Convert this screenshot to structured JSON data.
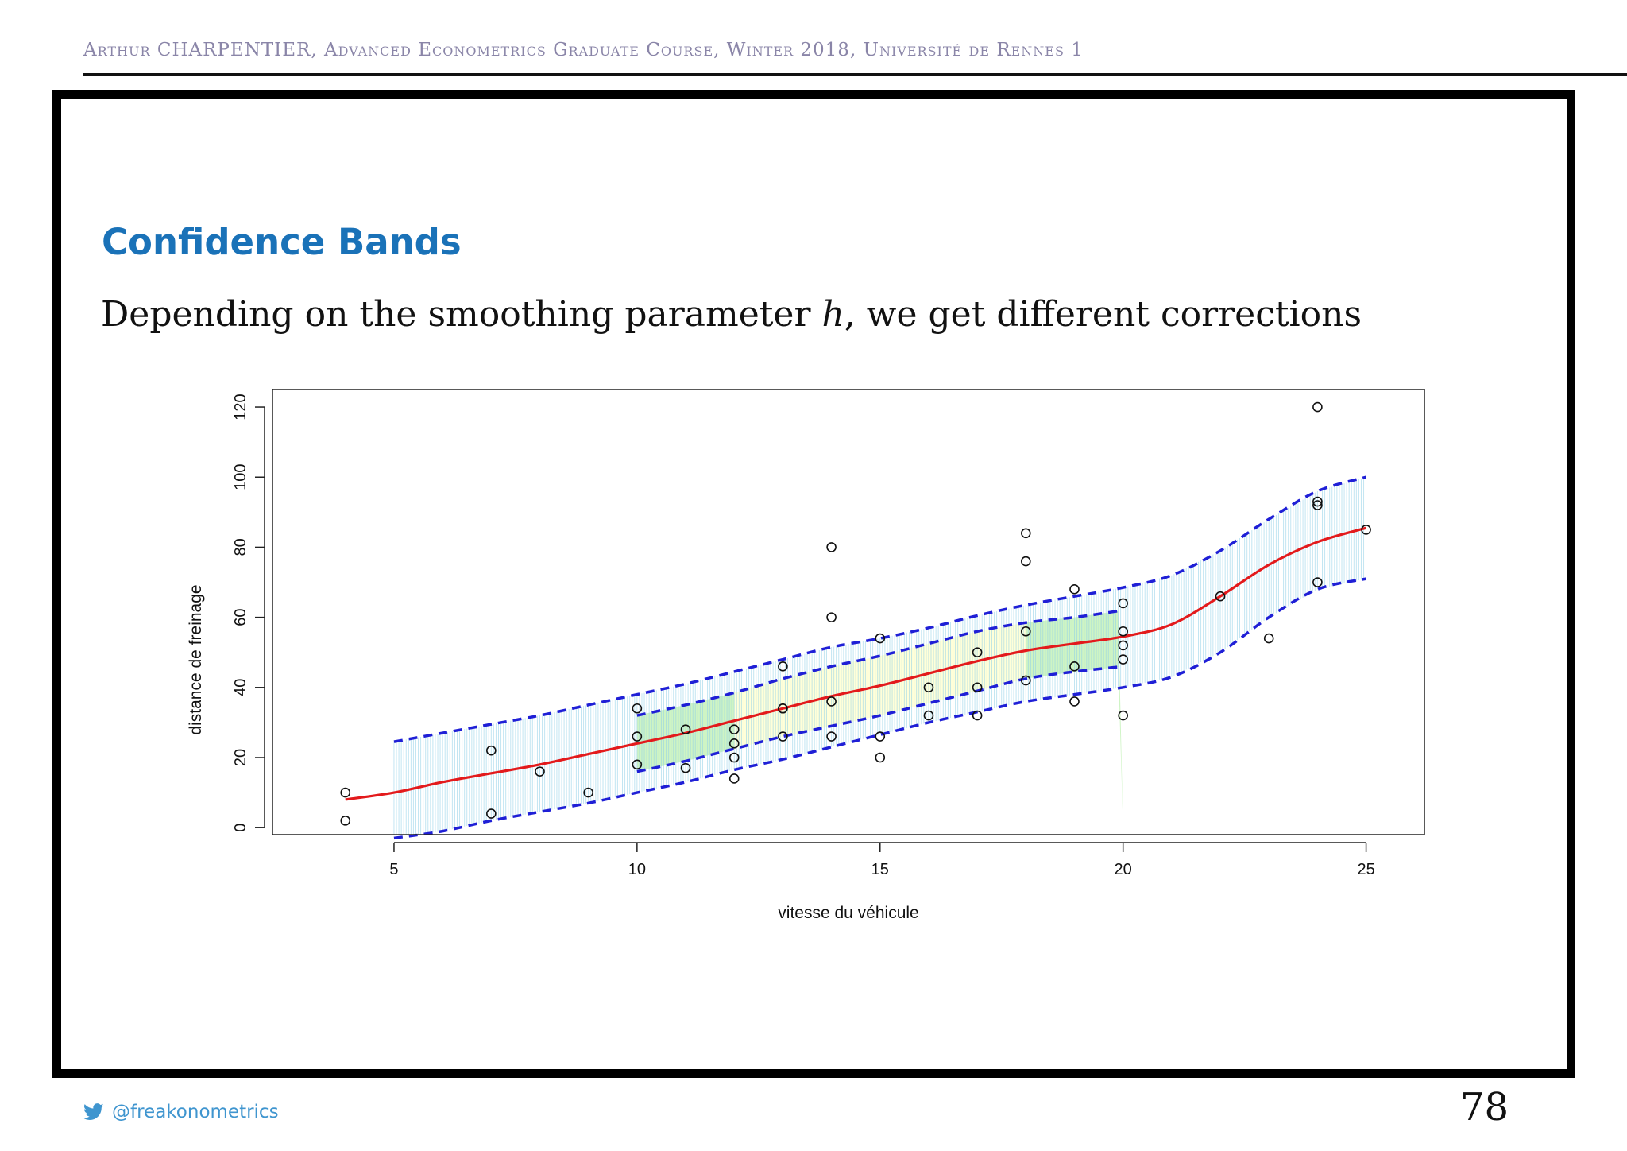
{
  "header": {
    "text": "Arthur CHARPENTIER, Advanced Econometrics Graduate Course, Winter 2018, Université de Rennes 1"
  },
  "slide": {
    "title": "Confidence Bands",
    "lead_before": "Depending on the smoothing parameter ",
    "lead_var": "h",
    "lead_after": ", we get different corrections"
  },
  "footer": {
    "handle": "@freakonometrics",
    "icon": "twitter-icon",
    "page_number": "78"
  },
  "colors": {
    "title": "#1a72b8",
    "fit_line": "#e31a1c",
    "band_line": "#1f1fd6",
    "band_fill": "#8fd0e8",
    "highlight_green": "#bdf0b0",
    "highlight_yellow": "#ffffcc"
  },
  "chart_data": {
    "type": "scatter",
    "title": "",
    "xlabel": "vitesse du véhicule",
    "ylabel": "distance de freinage",
    "xlim": [
      2.5,
      26.2
    ],
    "ylim": [
      -2,
      125
    ],
    "x_ticks": [
      5,
      10,
      15,
      20,
      25
    ],
    "y_ticks": [
      0,
      20,
      40,
      60,
      80,
      100,
      120
    ],
    "grid": false,
    "legend": "none",
    "points": [
      [
        4,
        2
      ],
      [
        4,
        10
      ],
      [
        7,
        4
      ],
      [
        7,
        22
      ],
      [
        8,
        16
      ],
      [
        9,
        10
      ],
      [
        10,
        18
      ],
      [
        10,
        26
      ],
      [
        10,
        34
      ],
      [
        11,
        17
      ],
      [
        11,
        28
      ],
      [
        12,
        14
      ],
      [
        12,
        20
      ],
      [
        12,
        24
      ],
      [
        12,
        28
      ],
      [
        13,
        26
      ],
      [
        13,
        34
      ],
      [
        13,
        34
      ],
      [
        13,
        46
      ],
      [
        14,
        26
      ],
      [
        14,
        36
      ],
      [
        14,
        60
      ],
      [
        14,
        80
      ],
      [
        15,
        20
      ],
      [
        15,
        26
      ],
      [
        15,
        54
      ],
      [
        16,
        32
      ],
      [
        16,
        40
      ],
      [
        17,
        32
      ],
      [
        17,
        40
      ],
      [
        17,
        50
      ],
      [
        18,
        42
      ],
      [
        18,
        56
      ],
      [
        18,
        76
      ],
      [
        18,
        84
      ],
      [
        19,
        36
      ],
      [
        19,
        46
      ],
      [
        19,
        68
      ],
      [
        20,
        32
      ],
      [
        20,
        48
      ],
      [
        20,
        52
      ],
      [
        20,
        56
      ],
      [
        20,
        64
      ],
      [
        22,
        66
      ],
      [
        23,
        54
      ],
      [
        24,
        70
      ],
      [
        24,
        92
      ],
      [
        24,
        93
      ],
      [
        24,
        120
      ],
      [
        25,
        85
      ]
    ],
    "series": [
      {
        "name": "fit",
        "x": [
          4,
          5,
          6,
          7,
          8,
          9,
          10,
          11,
          12,
          13,
          14,
          15,
          16,
          17,
          18,
          19,
          20,
          21,
          22,
          23,
          24,
          25
        ],
        "y": [
          8,
          10,
          13,
          15.5,
          18,
          21,
          24,
          27,
          30.5,
          34,
          37.5,
          40.5,
          44,
          47.5,
          50.5,
          52.5,
          54.5,
          58,
          66,
          75,
          81.5,
          85.5
        ]
      },
      {
        "name": "upper band (wide)",
        "x": [
          5,
          6,
          7,
          8,
          9,
          10,
          11,
          12,
          13,
          14,
          15,
          16,
          17,
          18,
          19,
          20,
          21,
          22,
          23,
          24,
          25
        ],
        "y": [
          24.5,
          27,
          29.5,
          32,
          35,
          38,
          41,
          44.5,
          48,
          51.5,
          54,
          57,
          60.5,
          63.5,
          66,
          68.5,
          72,
          79,
          88,
          96,
          100
        ]
      },
      {
        "name": "lower band (wide)",
        "x": [
          5,
          6,
          7,
          8,
          9,
          10,
          11,
          12,
          13,
          14,
          15,
          16,
          17,
          18,
          19,
          20,
          21,
          22,
          23,
          24,
          25
        ],
        "y": [
          -3,
          -1,
          2,
          4.5,
          7,
          10,
          13,
          16.5,
          19.5,
          23,
          26.5,
          30,
          33,
          36,
          38,
          40,
          43,
          50,
          60,
          68,
          71
        ]
      },
      {
        "name": "upper band (narrow)",
        "x": [
          10,
          11,
          12,
          13,
          14,
          15,
          16,
          17,
          18,
          19,
          20
        ],
        "y": [
          32,
          35,
          38.5,
          42.5,
          46,
          49,
          52.5,
          56,
          58.5,
          60,
          62
        ]
      },
      {
        "name": "lower band (narrow)",
        "x": [
          10,
          11,
          12,
          13,
          14,
          15,
          16,
          17,
          18,
          19,
          20
        ],
        "y": [
          16,
          19,
          22.5,
          26,
          29,
          32,
          35.5,
          39,
          42.5,
          44.5,
          46
        ]
      }
    ],
    "band_highlights": [
      {
        "x": [
          10,
          12
        ],
        "color": "green"
      },
      {
        "x": [
          12,
          18
        ],
        "color": "yellow"
      },
      {
        "x": [
          18,
          20
        ],
        "color": "green"
      }
    ]
  }
}
